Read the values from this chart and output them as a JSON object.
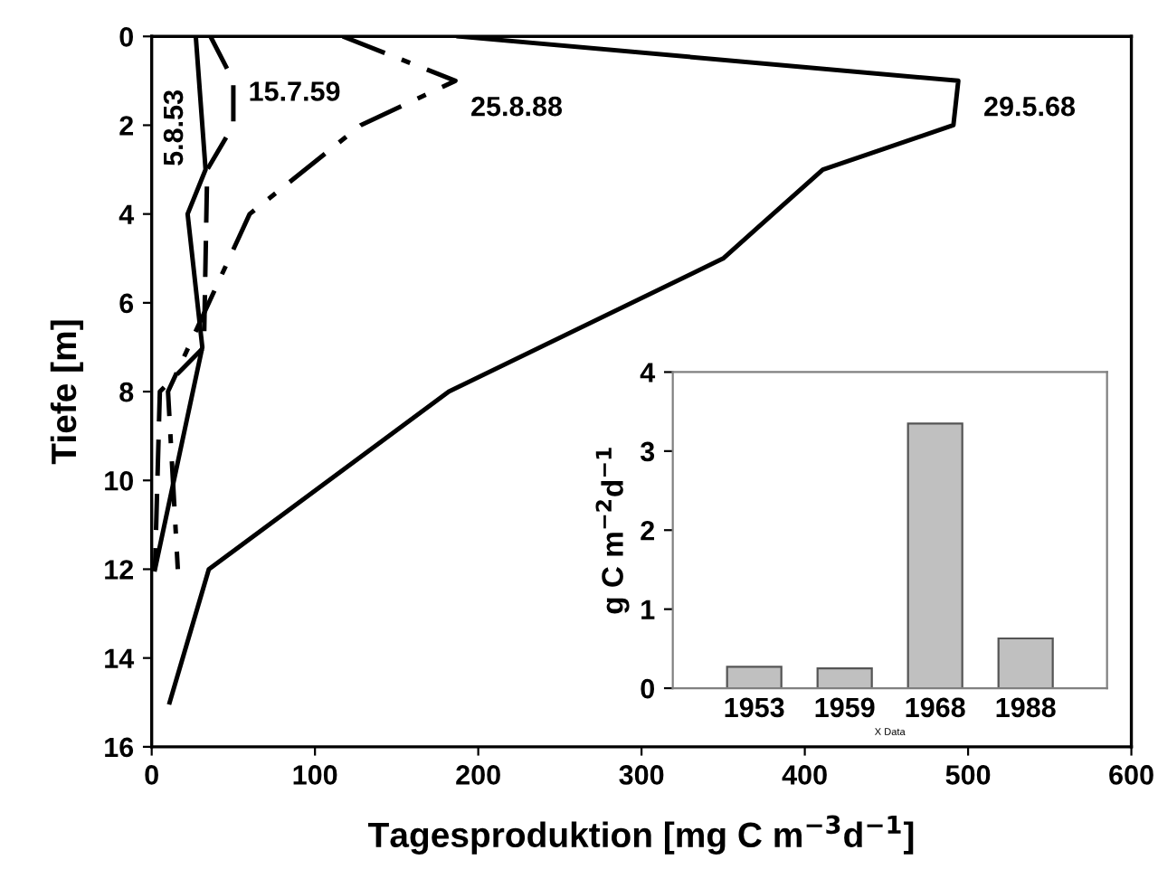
{
  "chart_data": [
    {
      "type": "line",
      "xlabel": "Tagesproduktion [mg C m$^{−3}$d$^{−1}$]",
      "ylabel": "Tiefe [m]",
      "xlim": [
        0,
        600
      ],
      "xticks": [
        0,
        100,
        200,
        300,
        400,
        500,
        600
      ],
      "ylim": [
        16,
        0
      ],
      "yticks": [
        0,
        2,
        4,
        6,
        8,
        10,
        12,
        14,
        16
      ],
      "grid": false,
      "legend": false,
      "marker": "none",
      "series": [
        {
          "name": "5.8.53",
          "color": "#000000",
          "line_style": "solid",
          "x": [
            27,
            33,
            22,
            31,
            2
          ],
          "values": [
            0,
            3,
            4,
            7,
            12
          ]
        },
        {
          "name": "15.7.59",
          "color": "#000000",
          "line_style": "dashed",
          "x": [
            36,
            50,
            50,
            34,
            32,
            5,
            2
          ],
          "values": [
            0,
            1,
            2,
            3,
            7,
            8,
            12
          ]
        },
        {
          "name": "25.8.88",
          "color": "#000000",
          "line_style": "dashdot",
          "x": [
            117,
            186,
            128,
            60,
            10,
            16
          ],
          "values": [
            0,
            1,
            2,
            4,
            8,
            12
          ]
        },
        {
          "name": "29.5.68",
          "color": "#000000",
          "line_style": "solid",
          "x": [
            188,
            494,
            491,
            411,
            350,
            182,
            35,
            11
          ],
          "values": [
            0,
            1,
            2,
            3,
            5,
            8,
            12,
            15
          ]
        }
      ]
    },
    {
      "type": "bar",
      "xlabel": "X Data",
      "ylabel": "g C m$^{−2}$d$^{−1}$",
      "categories": [
        "1953",
        "1959",
        "1968",
        "1988"
      ],
      "values": [
        0.27,
        0.25,
        3.35,
        0.63
      ],
      "color": "#c0c0c0",
      "ylim": [
        0,
        4
      ],
      "yticks": [
        0,
        1,
        2,
        3,
        4
      ],
      "grid": false
    }
  ]
}
